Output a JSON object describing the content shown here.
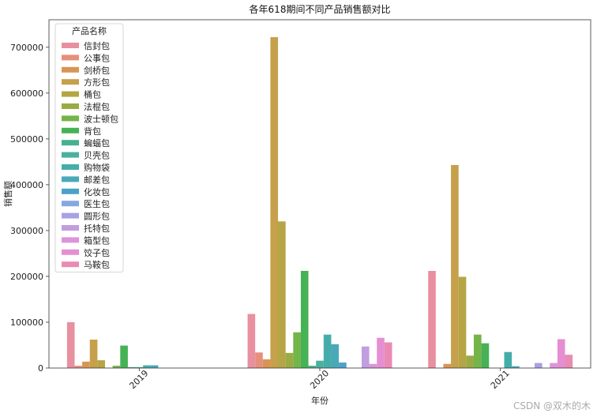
{
  "chart_data": {
    "type": "bar",
    "title": "各年618期间不同产品销售额对比",
    "xlabel": "年份",
    "ylabel": "销售额",
    "ylim": [
      0,
      760000
    ],
    "yticks": [
      0,
      100000,
      200000,
      300000,
      400000,
      500000,
      600000,
      700000
    ],
    "categories": [
      "2019",
      "2020",
      "2021"
    ],
    "legend_title": "产品名称",
    "legend_position": "top-left",
    "grid": false,
    "series": [
      {
        "name": "信封包",
        "color": "#e8909f",
        "values": [
          100000,
          118000,
          212000
        ]
      },
      {
        "name": "公事包",
        "color": "#e6907c",
        "values": [
          5000,
          34000,
          0
        ]
      },
      {
        "name": "剑桥包",
        "color": "#d99454",
        "values": [
          14000,
          19000,
          9000
        ]
      },
      {
        "name": "方形包",
        "color": "#c6a04a",
        "values": [
          62000,
          722000,
          443000
        ]
      },
      {
        "name": "桶包",
        "color": "#b5a544",
        "values": [
          17000,
          320000,
          199000
        ]
      },
      {
        "name": "法棍包",
        "color": "#9aab44",
        "values": [
          0,
          33000,
          27000
        ]
      },
      {
        "name": "波士顿包",
        "color": "#74b449",
        "values": [
          5000,
          78000,
          73000
        ]
      },
      {
        "name": "背包",
        "color": "#45b255",
        "values": [
          49000,
          212000,
          54000
        ]
      },
      {
        "name": "蝙蝠包",
        "color": "#47b08d",
        "values": [
          2000,
          5000,
          0
        ]
      },
      {
        "name": "贝壳包",
        "color": "#4bb0a0",
        "values": [
          2000,
          16000,
          0
        ]
      },
      {
        "name": "购物袋",
        "color": "#45ada9",
        "values": [
          6000,
          73000,
          35000
        ]
      },
      {
        "name": "邮差包",
        "color": "#4aa9b8",
        "values": [
          6000,
          52000,
          4000
        ]
      },
      {
        "name": "化妆包",
        "color": "#4aa2c8",
        "values": [
          0,
          12000,
          0
        ]
      },
      {
        "name": "医生包",
        "color": "#86a8e0",
        "values": [
          0,
          0,
          0
        ]
      },
      {
        "name": "圆形包",
        "color": "#a8a2e3",
        "values": [
          0,
          0,
          11000
        ]
      },
      {
        "name": "托特包",
        "color": "#c09ee0",
        "values": [
          0,
          47000,
          0
        ]
      },
      {
        "name": "箱型包",
        "color": "#dc94dc",
        "values": [
          0,
          9000,
          11000
        ]
      },
      {
        "name": "饺子包",
        "color": "#e58fd2",
        "values": [
          0,
          66000,
          63000
        ]
      },
      {
        "name": "马鞍包",
        "color": "#e98bb5",
        "values": [
          0,
          56000,
          29000
        ]
      }
    ]
  },
  "watermark": "CSDN @双木的木"
}
